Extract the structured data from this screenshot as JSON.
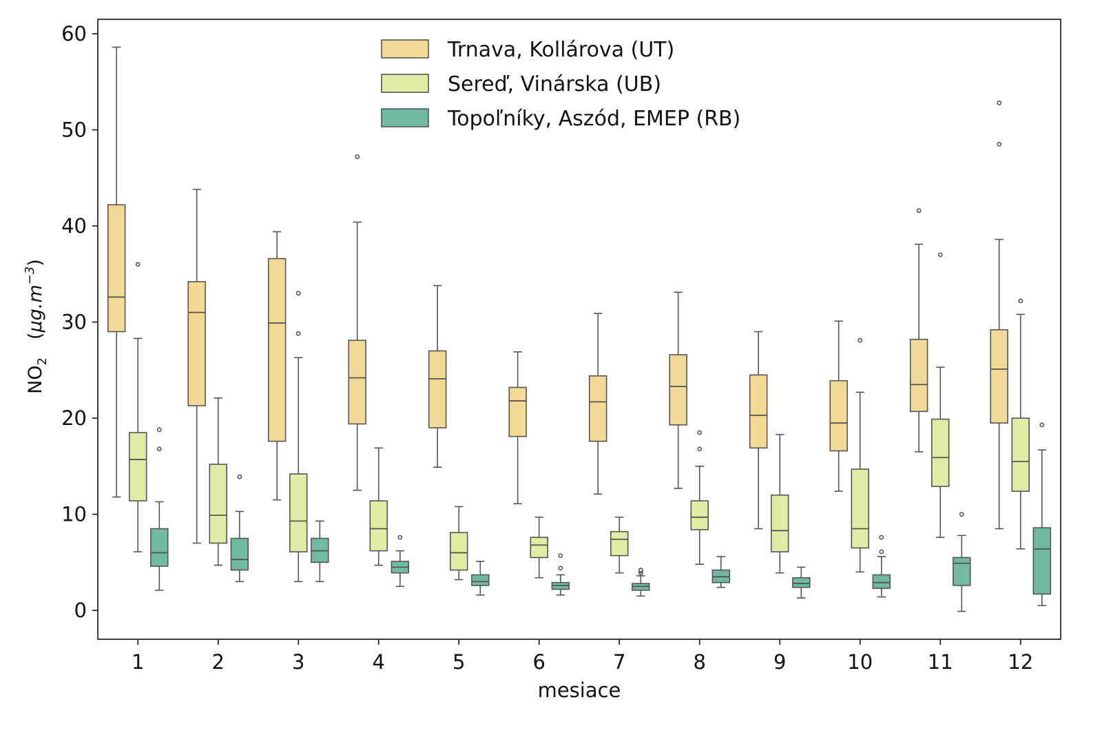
{
  "chart_data": {
    "type": "box",
    "xlabel": "mesiace",
    "ylabel": {
      "quantity": "NO",
      "subscript": "2",
      "unit_open": "(",
      "unit": "μg.m",
      "superscript": "−3",
      "unit_close": ")"
    },
    "ylim": [
      -3,
      61.5
    ],
    "yticks": [
      0,
      10,
      20,
      30,
      40,
      50,
      60
    ],
    "ytick_labels": [
      "0",
      "10",
      "20",
      "30",
      "40",
      "50",
      "60"
    ],
    "categories": [
      "1",
      "2",
      "3",
      "4",
      "5",
      "6",
      "7",
      "8",
      "9",
      "10",
      "11",
      "12"
    ],
    "legend_position": "top-center",
    "series": [
      {
        "name": "Trnava, Kollárova (UT)",
        "color": "#f2d996",
        "boxes": [
          {
            "whislo": 11.8,
            "q1": 29.0,
            "med": 32.6,
            "q3": 42.2,
            "whishi": 58.6,
            "fliers": []
          },
          {
            "whislo": 7.0,
            "q1": 21.3,
            "med": 31.0,
            "q3": 34.2,
            "whishi": 43.8,
            "fliers": []
          },
          {
            "whislo": 11.5,
            "q1": 17.6,
            "med": 29.9,
            "q3": 36.6,
            "whishi": 39.4,
            "fliers": []
          },
          {
            "whislo": 12.5,
            "q1": 19.4,
            "med": 24.2,
            "q3": 28.1,
            "whishi": 40.4,
            "fliers": [
              47.2
            ]
          },
          {
            "whislo": 14.9,
            "q1": 19.0,
            "med": 24.1,
            "q3": 27.0,
            "whishi": 33.8,
            "fliers": []
          },
          {
            "whislo": 11.1,
            "q1": 18.1,
            "med": 21.8,
            "q3": 23.2,
            "whishi": 26.9,
            "fliers": []
          },
          {
            "whislo": 12.1,
            "q1": 17.6,
            "med": 21.7,
            "q3": 24.4,
            "whishi": 30.9,
            "fliers": []
          },
          {
            "whislo": 12.7,
            "q1": 19.3,
            "med": 23.3,
            "q3": 26.6,
            "whishi": 33.1,
            "fliers": []
          },
          {
            "whislo": 8.5,
            "q1": 16.9,
            "med": 20.3,
            "q3": 24.5,
            "whishi": 29.0,
            "fliers": []
          },
          {
            "whislo": 12.4,
            "q1": 16.6,
            "med": 19.5,
            "q3": 23.9,
            "whishi": 30.1,
            "fliers": []
          },
          {
            "whislo": 16.5,
            "q1": 20.7,
            "med": 23.5,
            "q3": 28.2,
            "whishi": 38.1,
            "fliers": [
              41.6
            ]
          },
          {
            "whislo": 8.5,
            "q1": 19.5,
            "med": 25.1,
            "q3": 29.2,
            "whishi": 38.6,
            "fliers": [
              48.5,
              52.8
            ]
          }
        ]
      },
      {
        "name": "Sereď, Vinárska (UB)",
        "color": "#e0eca3",
        "boxes": [
          {
            "whislo": 6.1,
            "q1": 11.4,
            "med": 15.7,
            "q3": 18.5,
            "whishi": 28.3,
            "fliers": [
              36.0
            ]
          },
          {
            "whislo": 4.7,
            "q1": 7.0,
            "med": 9.9,
            "q3": 15.2,
            "whishi": 22.1,
            "fliers": []
          },
          {
            "whislo": 3.0,
            "q1": 6.1,
            "med": 9.3,
            "q3": 14.2,
            "whishi": 26.3,
            "fliers": [
              28.8,
              33.0
            ]
          },
          {
            "whislo": 4.7,
            "q1": 6.2,
            "med": 8.5,
            "q3": 11.4,
            "whishi": 16.9,
            "fliers": []
          },
          {
            "whislo": 3.2,
            "q1": 4.2,
            "med": 6.0,
            "q3": 8.1,
            "whishi": 10.8,
            "fliers": []
          },
          {
            "whislo": 3.4,
            "q1": 5.5,
            "med": 6.8,
            "q3": 7.6,
            "whishi": 9.7,
            "fliers": []
          },
          {
            "whislo": 3.9,
            "q1": 5.7,
            "med": 7.4,
            "q3": 8.2,
            "whishi": 9.7,
            "fliers": []
          },
          {
            "whislo": 4.8,
            "q1": 8.4,
            "med": 9.7,
            "q3": 11.4,
            "whishi": 15.0,
            "fliers": [
              16.8,
              18.5
            ]
          },
          {
            "whislo": 3.9,
            "q1": 6.1,
            "med": 8.3,
            "q3": 12.0,
            "whishi": 18.3,
            "fliers": []
          },
          {
            "whislo": 4.0,
            "q1": 6.5,
            "med": 8.5,
            "q3": 14.7,
            "whishi": 22.7,
            "fliers": [
              28.1
            ]
          },
          {
            "whislo": 7.6,
            "q1": 12.9,
            "med": 15.9,
            "q3": 19.9,
            "whishi": 25.3,
            "fliers": [
              37.0
            ]
          },
          {
            "whislo": 6.4,
            "q1": 12.4,
            "med": 15.5,
            "q3": 20.0,
            "whishi": 30.8,
            "fliers": [
              32.2
            ]
          }
        ]
      },
      {
        "name": "Topoľníky, Aszód, EMEP (RB)",
        "color": "#72b9a1",
        "boxes": [
          {
            "whislo": 2.1,
            "q1": 4.6,
            "med": 6.0,
            "q3": 8.5,
            "whishi": 11.3,
            "fliers": [
              16.8,
              18.8
            ]
          },
          {
            "whislo": 3.0,
            "q1": 4.2,
            "med": 5.3,
            "q3": 7.5,
            "whishi": 10.3,
            "fliers": [
              13.9
            ]
          },
          {
            "whislo": 3.0,
            "q1": 5.0,
            "med": 6.2,
            "q3": 7.5,
            "whishi": 9.3,
            "fliers": []
          },
          {
            "whislo": 2.5,
            "q1": 3.9,
            "med": 4.5,
            "q3": 5.1,
            "whishi": 6.2,
            "fliers": [
              7.6
            ]
          },
          {
            "whislo": 1.6,
            "q1": 2.6,
            "med": 3.0,
            "q3": 3.7,
            "whishi": 5.1,
            "fliers": []
          },
          {
            "whislo": 1.6,
            "q1": 2.2,
            "med": 2.6,
            "q3": 2.9,
            "whishi": 3.7,
            "fliers": [
              4.4,
              5.7
            ]
          },
          {
            "whislo": 1.5,
            "q1": 2.1,
            "med": 2.5,
            "q3": 2.8,
            "whishi": 3.6,
            "fliers": [
              3.9,
              4.1,
              4.2
            ]
          },
          {
            "whislo": 2.4,
            "q1": 2.9,
            "med": 3.5,
            "q3": 4.2,
            "whishi": 5.6,
            "fliers": []
          },
          {
            "whislo": 1.3,
            "q1": 2.4,
            "med": 2.8,
            "q3": 3.4,
            "whishi": 4.5,
            "fliers": []
          },
          {
            "whislo": 1.4,
            "q1": 2.3,
            "med": 2.9,
            "q3": 3.7,
            "whishi": 5.6,
            "fliers": [
              6.1,
              7.6
            ]
          },
          {
            "whislo": -0.1,
            "q1": 2.6,
            "med": 4.9,
            "q3": 5.5,
            "whishi": 7.8,
            "fliers": [
              10.0
            ]
          },
          {
            "whislo": 0.5,
            "q1": 1.7,
            "med": 6.4,
            "q3": 8.6,
            "whishi": 16.7,
            "fliers": [
              19.3
            ]
          }
        ]
      }
    ]
  }
}
